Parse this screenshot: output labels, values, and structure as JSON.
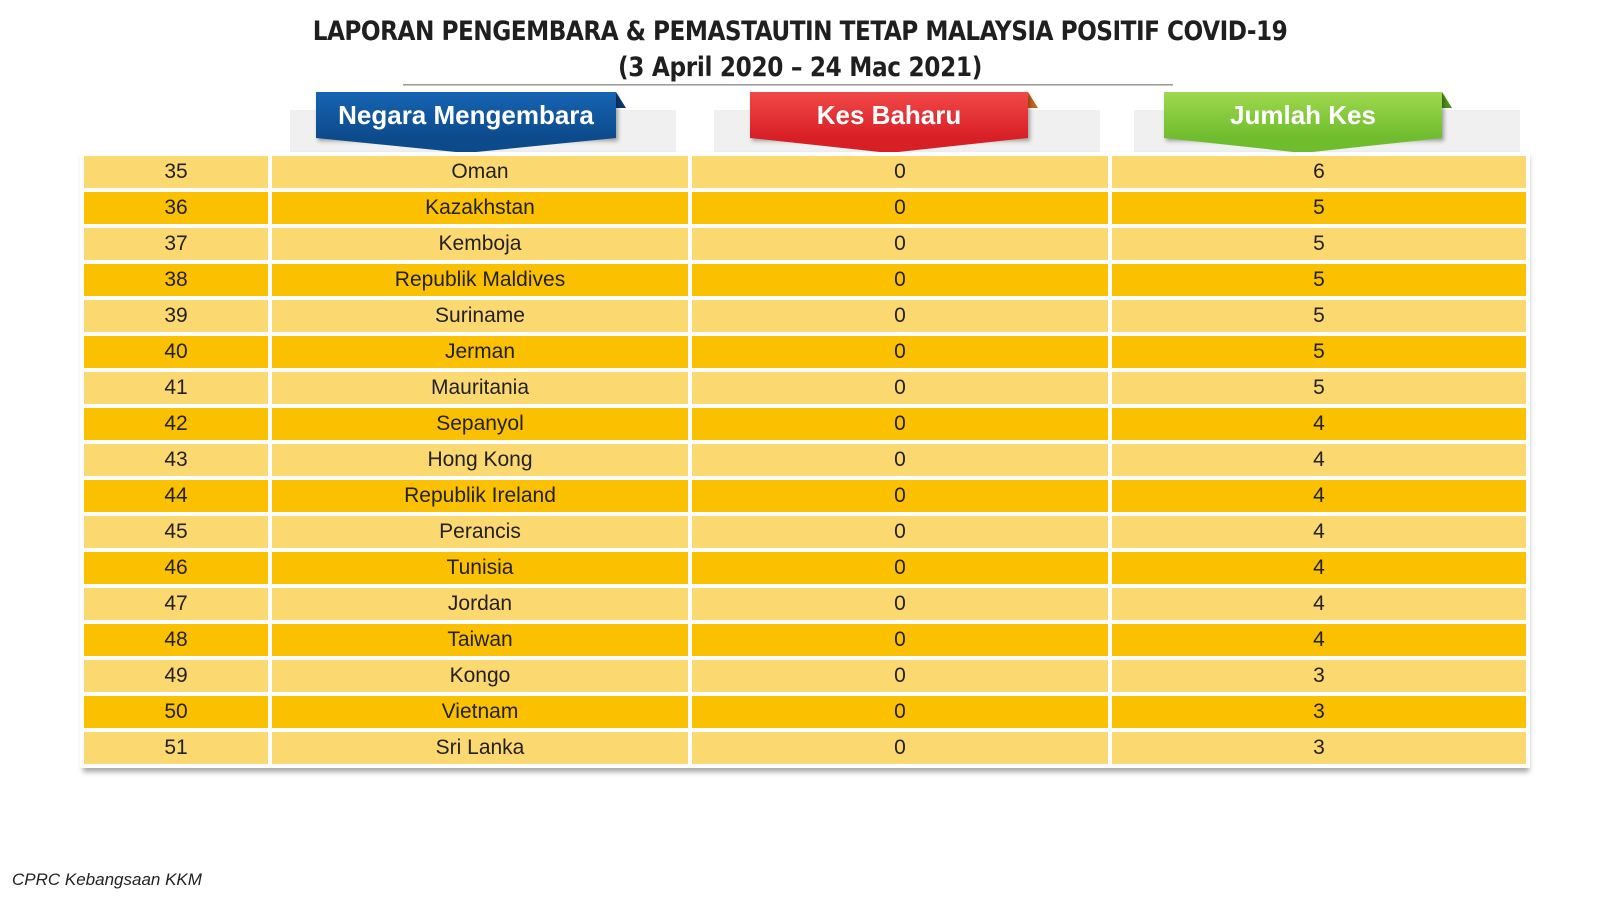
{
  "title": {
    "line1": "LAPORAN PENGEMBARA & PEMASTAUTIN TETAP MALAYSIA POSITIF COVID-19",
    "line2": "(3 April 2020 – 24 Mac 2021)"
  },
  "headers": {
    "country": "Negara Mengembara",
    "new_cases": "Kes Baharu",
    "total_cases": "Jumlah Kes"
  },
  "colors": {
    "header_blue": "#0d4a8c",
    "header_red": "#d81f26",
    "header_green": "#6fbd2e",
    "row_light": "#fcd870",
    "row_dark": "#fbc000"
  },
  "rows": [
    {
      "no": "35",
      "country": "Oman",
      "new": "0",
      "total": "6"
    },
    {
      "no": "36",
      "country": "Kazakhstan",
      "new": "0",
      "total": "5"
    },
    {
      "no": "37",
      "country": "Kemboja",
      "new": "0",
      "total": "5"
    },
    {
      "no": "38",
      "country": "Republik Maldives",
      "new": "0",
      "total": "5"
    },
    {
      "no": "39",
      "country": "Suriname",
      "new": "0",
      "total": "5"
    },
    {
      "no": "40",
      "country": "Jerman",
      "new": "0",
      "total": "5"
    },
    {
      "no": "41",
      "country": "Mauritania",
      "new": "0",
      "total": "5"
    },
    {
      "no": "42",
      "country": "Sepanyol",
      "new": "0",
      "total": "4"
    },
    {
      "no": "43",
      "country": "Hong Kong",
      "new": "0",
      "total": "4"
    },
    {
      "no": "44",
      "country": "Republik Ireland",
      "new": "0",
      "total": "4"
    },
    {
      "no": "45",
      "country": "Perancis",
      "new": "0",
      "total": "4"
    },
    {
      "no": "46",
      "country": "Tunisia",
      "new": "0",
      "total": "4"
    },
    {
      "no": "47",
      "country": "Jordan",
      "new": "0",
      "total": "4"
    },
    {
      "no": "48",
      "country": "Taiwan",
      "new": "0",
      "total": "4"
    },
    {
      "no": "49",
      "country": "Kongo",
      "new": "0",
      "total": "3"
    },
    {
      "no": "50",
      "country": "Vietnam",
      "new": "0",
      "total": "3"
    },
    {
      "no": "51",
      "country": "Sri Lanka",
      "new": "0",
      "total": "3"
    }
  ],
  "footer": "CPRC Kebangsaan KKM"
}
